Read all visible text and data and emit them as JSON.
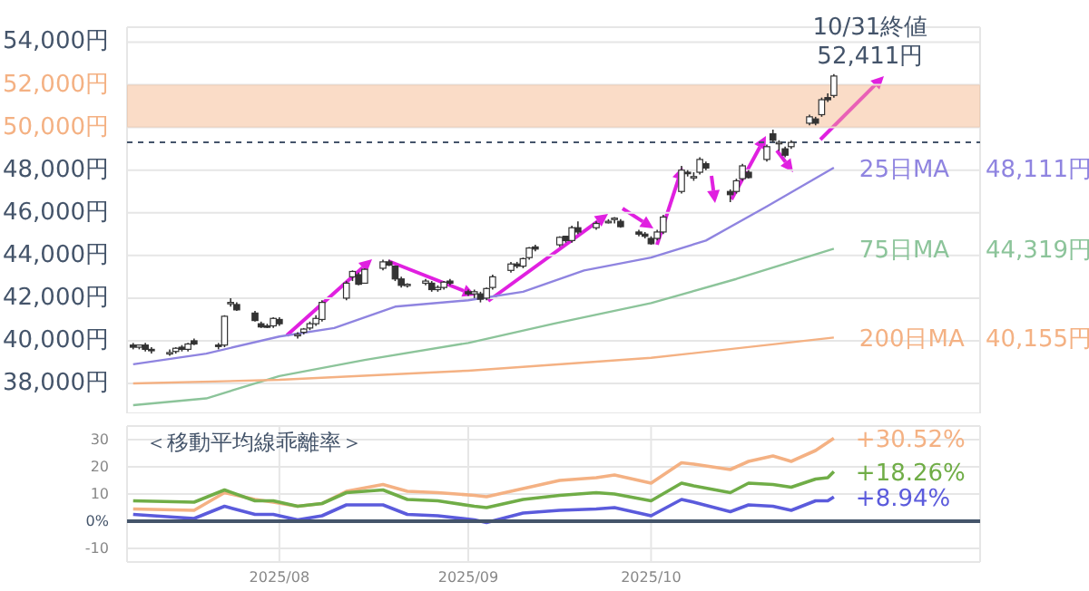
{
  "chart_data": [
    {
      "type": "candlestick",
      "color": "#333333",
      "x": [
        "2025-07-08",
        "2025-07-09",
        "2025-07-10",
        "2025-07-11",
        "2025-07-14",
        "2025-07-15",
        "2025-07-16",
        "2025-07-17",
        "2025-07-18",
        "2025-07-22",
        "2025-07-23",
        "2025-07-24",
        "2025-07-25",
        "2025-07-28",
        "2025-07-29",
        "2025-07-30",
        "2025-07-31",
        "2025-08-01",
        "2025-08-04",
        "2025-08-05",
        "2025-08-06",
        "2025-08-07",
        "2025-08-08",
        "2025-08-12",
        "2025-08-13",
        "2025-08-14",
        "2025-08-15",
        "2025-08-18",
        "2025-08-19",
        "2025-08-20",
        "2025-08-21",
        "2025-08-22",
        "2025-08-25",
        "2025-08-26",
        "2025-08-27",
        "2025-08-28",
        "2025-08-29",
        "2025-09-01",
        "2025-09-02",
        "2025-09-03",
        "2025-09-04",
        "2025-09-05",
        "2025-09-08",
        "2025-09-09",
        "2025-09-10",
        "2025-09-11",
        "2025-09-12",
        "2025-09-16",
        "2025-09-17",
        "2025-09-18",
        "2025-09-19",
        "2025-09-22",
        "2025-09-24",
        "2025-09-25",
        "2025-09-26",
        "2025-09-29",
        "2025-09-30",
        "2025-10-01",
        "2025-10-02",
        "2025-10-03",
        "2025-10-06",
        "2025-10-07",
        "2025-10-08",
        "2025-10-09",
        "2025-10-10",
        "2025-10-14",
        "2025-10-15",
        "2025-10-16",
        "2025-10-17",
        "2025-10-20",
        "2025-10-21",
        "2025-10-22",
        "2025-10-23",
        "2025-10-24",
        "2025-10-27",
        "2025-10-28",
        "2025-10-29",
        "2025-10-30",
        "2025-10-31"
      ],
      "ohlc": [
        [
          39800,
          39900,
          39600,
          39700
        ],
        [
          39700,
          39800,
          39600,
          39800
        ],
        [
          39800,
          39900,
          39500,
          39600
        ],
        [
          39600,
          39700,
          39400,
          39550
        ],
        [
          39400,
          39600,
          39300,
          39450
        ],
        [
          39500,
          39700,
          39400,
          39650
        ],
        [
          39700,
          39800,
          39500,
          39600
        ],
        [
          39600,
          39900,
          39500,
          39850
        ],
        [
          40000,
          40100,
          39800,
          39850
        ],
        [
          39800,
          39900,
          39600,
          39750
        ],
        [
          39800,
          41200,
          39700,
          41150
        ],
        [
          41800,
          42000,
          41600,
          41800
        ],
        [
          41700,
          41800,
          41400,
          41450
        ],
        [
          41300,
          41400,
          40900,
          40950
        ],
        [
          40800,
          40900,
          40600,
          40650
        ],
        [
          40700,
          40800,
          40600,
          40650
        ],
        [
          40700,
          41100,
          40600,
          41050
        ],
        [
          41000,
          41100,
          40700,
          40800
        ],
        [
          40300,
          40400,
          40100,
          40300
        ],
        [
          40400,
          40600,
          40300,
          40550
        ],
        [
          40600,
          40900,
          40500,
          40800
        ],
        [
          40800,
          41200,
          40700,
          41050
        ],
        [
          41000,
          41900,
          40900,
          41800
        ],
        [
          42000,
          42800,
          41900,
          42700
        ],
        [
          43000,
          43300,
          42800,
          43250
        ],
        [
          43100,
          43200,
          42600,
          42650
        ],
        [
          42700,
          43400,
          42700,
          43350
        ],
        [
          43400,
          43800,
          43300,
          43700
        ],
        [
          43700,
          43800,
          43500,
          43550
        ],
        [
          43500,
          43500,
          42800,
          42900
        ],
        [
          42900,
          43000,
          42500,
          42600
        ],
        [
          42600,
          42700,
          42500,
          42650
        ],
        [
          42700,
          42900,
          42600,
          42800
        ],
        [
          42700,
          42800,
          42300,
          42400
        ],
        [
          42400,
          42600,
          42300,
          42500
        ],
        [
          42500,
          42800,
          42400,
          42750
        ],
        [
          42800,
          42900,
          42600,
          42700
        ],
        [
          42300,
          42400,
          42100,
          42200
        ],
        [
          42200,
          42400,
          42000,
          42300
        ],
        [
          42200,
          42300,
          41800,
          41950
        ],
        [
          42000,
          42500,
          41900,
          42450
        ],
        [
          42500,
          43100,
          42400,
          43000
        ],
        [
          43300,
          43700,
          43200,
          43600
        ],
        [
          43600,
          43700,
          43400,
          43500
        ],
        [
          43500,
          43900,
          43400,
          43850
        ],
        [
          43900,
          44400,
          43800,
          44350
        ],
        [
          44400,
          44500,
          44200,
          44300
        ],
        [
          44500,
          44900,
          44400,
          44850
        ],
        [
          44900,
          44900,
          44600,
          44700
        ],
        [
          44700,
          45400,
          44600,
          45300
        ],
        [
          45300,
          45600,
          45000,
          45100
        ],
        [
          45300,
          45600,
          45200,
          45500
        ],
        [
          45600,
          45700,
          45500,
          45600
        ],
        [
          45700,
          45800,
          45500,
          45750
        ],
        [
          45600,
          45700,
          45300,
          45350
        ],
        [
          45100,
          45200,
          44900,
          45000
        ],
        [
          45000,
          45100,
          44800,
          44900
        ],
        [
          44800,
          44900,
          44500,
          44550
        ],
        [
          44800,
          45200,
          44700,
          45100
        ],
        [
          45100,
          45900,
          45000,
          45800
        ],
        [
          47000,
          48200,
          46900,
          48000
        ],
        [
          47900,
          48000,
          47700,
          47850
        ],
        [
          47700,
          47900,
          47500,
          47700
        ],
        [
          47900,
          48600,
          47800,
          48500
        ],
        [
          48300,
          48400,
          48000,
          48100
        ],
        [
          47000,
          47100,
          46500,
          46850
        ],
        [
          47000,
          47600,
          46900,
          47500
        ],
        [
          47600,
          48300,
          47500,
          48200
        ],
        [
          47900,
          48000,
          47600,
          47650
        ],
        [
          48500,
          49200,
          48400,
          49100
        ],
        [
          49700,
          49900,
          49300,
          49400
        ],
        [
          49300,
          49400,
          48900,
          49300
        ],
        [
          49000,
          49100,
          48600,
          48700
        ],
        [
          49100,
          49400,
          49000,
          49300
        ],
        [
          50200,
          50600,
          50100,
          50500
        ],
        [
          50400,
          50500,
          50100,
          50200
        ],
        [
          50600,
          51400,
          50500,
          51300
        ],
        [
          51400,
          51600,
          51200,
          51300
        ],
        [
          51500,
          52500,
          51400,
          52411
        ]
      ],
      "series": [
        {
          "name": "25日MA",
          "type": "line",
          "color": "#8f84e0",
          "x": [
            "2025-07-08",
            "2025-07-20",
            "2025-08-01",
            "2025-08-10",
            "2025-08-20",
            "2025-09-01",
            "2025-09-10",
            "2025-09-20",
            "2025-10-01",
            "2025-10-10",
            "2025-10-20",
            "2025-10-31"
          ],
          "values": [
            38900,
            39400,
            40200,
            40600,
            41600,
            41900,
            42300,
            43300,
            43900,
            44700,
            46300,
            48111
          ]
        },
        {
          "name": "75日MA",
          "type": "line",
          "color": "#8cc49a",
          "x": [
            "2025-07-08",
            "2025-07-20",
            "2025-08-01",
            "2025-08-15",
            "2025-09-01",
            "2025-09-15",
            "2025-10-01",
            "2025-10-15",
            "2025-10-31"
          ],
          "values": [
            36980,
            37300,
            38350,
            39100,
            39900,
            40800,
            41770,
            42900,
            44319
          ]
        },
        {
          "name": "200日MA",
          "type": "line",
          "color": "#f4b183",
          "x": [
            "2025-07-08",
            "2025-08-01",
            "2025-09-01",
            "2025-10-01",
            "2025-10-31"
          ],
          "values": [
            38000,
            38170,
            38600,
            39200,
            40155
          ]
        }
      ],
      "xlim": [
        "2025-07-07",
        "2025-11-24"
      ],
      "xticks": [
        {
          "value": "2025-08-01",
          "label": null
        },
        {
          "value": "2025-09-01",
          "label": null
        },
        {
          "value": "2025-10-01",
          "label": null
        }
      ],
      "ylim": [
        36600,
        54700
      ],
      "yticks": [
        {
          "value": 38000,
          "label": "38,000円"
        },
        {
          "value": 40000,
          "label": "40,000円"
        },
        {
          "value": 42000,
          "label": "42,000円"
        },
        {
          "value": 44000,
          "label": "44,000円"
        },
        {
          "value": 46000,
          "label": "46,000円"
        },
        {
          "value": 48000,
          "label": "48,000円"
        },
        {
          "value": 50000,
          "label": "50,000円"
        },
        {
          "value": 52000,
          "label": "52,000円"
        },
        {
          "value": 54000,
          "label": "54,000円"
        }
      ],
      "tick_labels": "y",
      "grid": true,
      "bands": [
        {
          "axis": "y",
          "from": 50000,
          "to": 52000,
          "color": "#f4b183"
        }
      ],
      "ref_lines": [
        {
          "axis": "y",
          "value": 49300,
          "line_style": "dashed",
          "color": "#44546a"
        }
      ],
      "annotations": [
        {
          "text": "10/31終値\n52,411円",
          "x": "2025-10-31",
          "y": 52411
        },
        "48,111円",
        "44,319円",
        "40,155円"
      ]
    },
    {
      "type": "line",
      "x": [
        "2025-07-08",
        "2025-07-18",
        "2025-07-23",
        "2025-07-28",
        "2025-07-31",
        "2025-08-04",
        "2025-08-08",
        "2025-08-12",
        "2025-08-18",
        "2025-08-22",
        "2025-08-27",
        "2025-09-02",
        "2025-09-04",
        "2025-09-10",
        "2025-09-16",
        "2025-09-22",
        "2025-09-25",
        "2025-10-01",
        "2025-10-06",
        "2025-10-08",
        "2025-10-14",
        "2025-10-17",
        "2025-10-21",
        "2025-10-24",
        "2025-10-28",
        "2025-10-30",
        "2025-10-31"
      ],
      "series": [
        {
          "color": "#f4b183",
          "values": [
            4.5,
            4,
            10.5,
            8,
            7,
            5.5,
            6.5,
            11,
            13.5,
            11,
            10.5,
            9.5,
            9,
            12,
            15,
            16,
            17,
            14,
            21.5,
            21,
            19,
            22,
            24,
            22,
            26,
            29,
            30.52
          ]
        },
        {
          "color": "#70ad47",
          "values": [
            7.5,
            7,
            11.5,
            7.5,
            7.5,
            5.5,
            6.5,
            10.5,
            11.5,
            8,
            7.5,
            5.5,
            5,
            8,
            9.5,
            10.5,
            10,
            7.5,
            14,
            13,
            10.5,
            14,
            13.5,
            12.5,
            15.5,
            16,
            18.26
          ]
        },
        {
          "color": "#5b5bdc",
          "values": [
            2.5,
            1,
            5.5,
            2.5,
            2.5,
            0.5,
            2,
            6,
            6,
            2.5,
            2,
            0.5,
            -0.5,
            3,
            4,
            4.5,
            5,
            2,
            8,
            7,
            3.5,
            6,
            5.5,
            4,
            7.5,
            7.5,
            8.94
          ]
        }
      ],
      "xlim": [
        "2025-07-07",
        "2025-11-24"
      ],
      "xticks": [
        {
          "value": "2025-08-01",
          "label": "2025/08"
        },
        {
          "value": "2025-09-01",
          "label": "2025/09"
        },
        {
          "value": "2025-10-01",
          "label": "2025/10"
        }
      ],
      "ylim": [
        -15,
        35
      ],
      "yticks": [
        -10,
        {
          "value": 0,
          "label": "0%"
        },
        10,
        20,
        30
      ],
      "grid": true,
      "ref_lines": [
        {
          "axis": "y",
          "value": 0,
          "color": "#44546a"
        }
      ],
      "annotations": [
        "＜移動平均線乖離率＞",
        {
          "text": "+30.52%",
          "x": "2025-10-31",
          "y": 30.52
        },
        {
          "text": "+18.26%",
          "x": "2025-10-31",
          "y": 18.26
        },
        {
          "text": "+8.94%",
          "x": "2025-10-31",
          "y": 8.94
        }
      ]
    }
  ]
}
